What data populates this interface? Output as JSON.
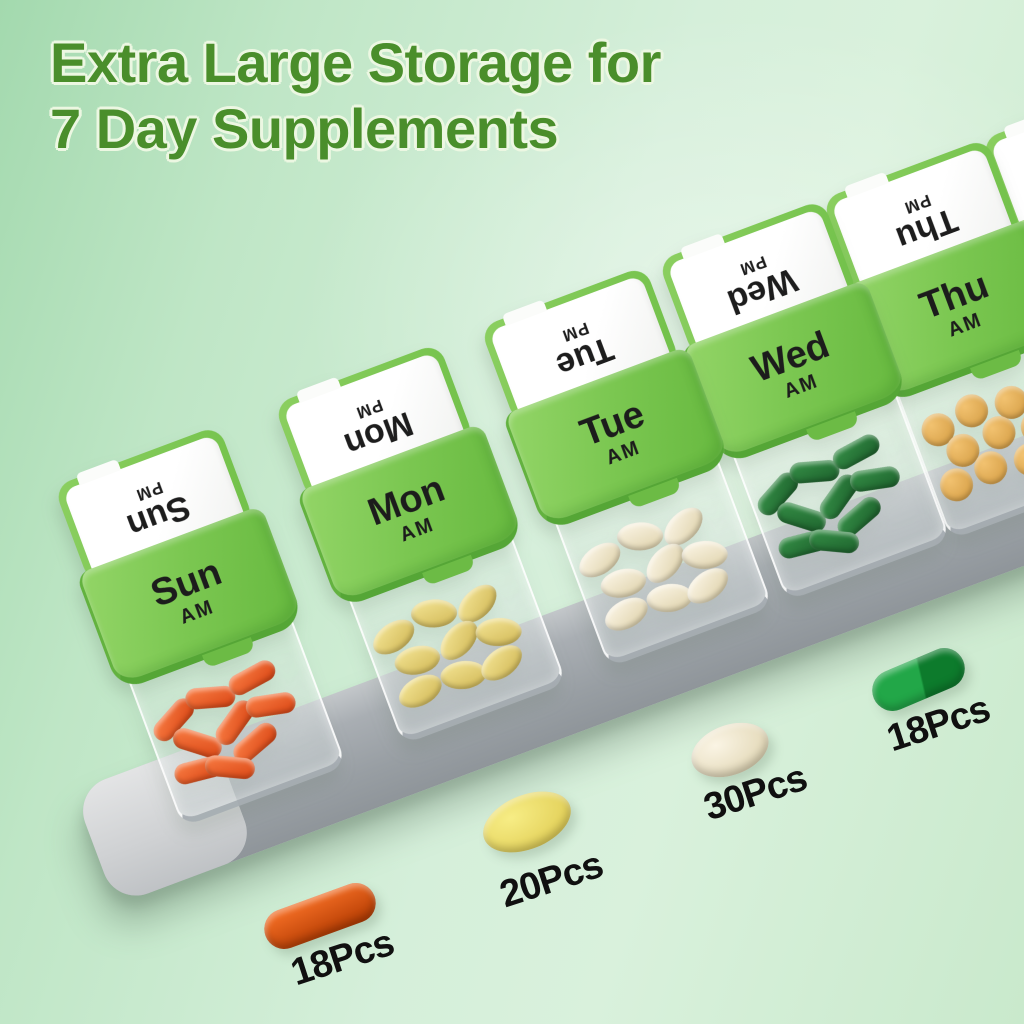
{
  "title": {
    "line1": "Extra Large Storage for",
    "line2": "7 Day Supplements",
    "color": "#4a8e2b"
  },
  "organizer": {
    "lid_green_color": "#7bc751",
    "tray_color": "#a9aeb3",
    "boxes": [
      {
        "day": "Sun",
        "am_label": "AM",
        "pm_label": "PM",
        "pill_shape": "capsule",
        "pill_color": "#f4743c",
        "pill_color_dark": "#d84413"
      },
      {
        "day": "Mon",
        "am_label": "AM",
        "pm_label": "PM",
        "pill_shape": "oval",
        "pill_color": "#eedd8a",
        "pill_color_dark": "#d0b755"
      },
      {
        "day": "Tue",
        "am_label": "AM",
        "pm_label": "PM",
        "pill_shape": "oval",
        "pill_color": "#f7f0dd",
        "pill_color_dark": "#ddd0a8"
      },
      {
        "day": "Wed",
        "am_label": "AM",
        "pm_label": "PM",
        "pill_shape": "capsule",
        "pill_color": "#318742",
        "pill_color_dark": "#1c5f2b"
      },
      {
        "day": "Thu",
        "am_label": "AM",
        "pm_label": "PM",
        "pill_shape": "round",
        "pill_color": "#f2c270",
        "pill_color_dark": "#d1993f"
      },
      {
        "day": "",
        "am_label": "",
        "pm_label": "",
        "pill_shape": "none",
        "pill_color": "",
        "pill_color_dark": ""
      }
    ]
  },
  "legend": [
    {
      "count_label": "18Pcs",
      "shape": "capsule",
      "color": "#ef6a22",
      "color_dark": "#b23a01"
    },
    {
      "count_label": "20Pcs",
      "shape": "oval",
      "color": "#f7ed85",
      "color_dark": "#dcc74b"
    },
    {
      "count_label": "30Pcs",
      "shape": "oval",
      "color": "#faf4e4",
      "color_dark": "#dcd0aa"
    },
    {
      "count_label": "18Pcs",
      "shape": "capsule2",
      "color": "#22a748",
      "color_dark": "#0d7b2c"
    }
  ]
}
